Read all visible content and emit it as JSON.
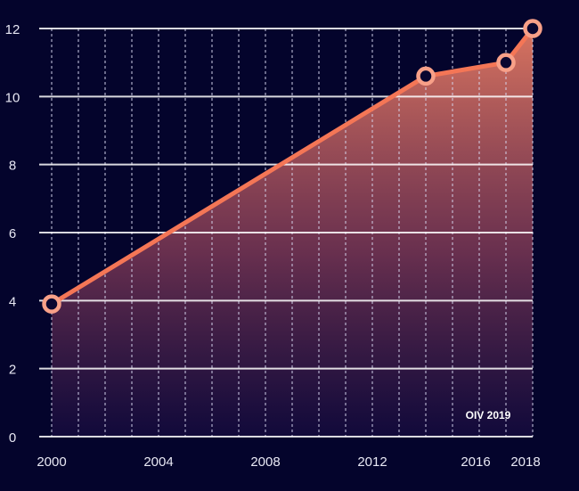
{
  "chart_data": {
    "type": "area",
    "title": "",
    "xlabel": "",
    "ylabel": "",
    "x_ticks": [
      "2000",
      "2004",
      "2008",
      "2012",
      "2016",
      "2018"
    ],
    "y_ticks": [
      "0",
      "2",
      "4",
      "6",
      "8",
      "10",
      "12"
    ],
    "xlim": [
      2000,
      2018
    ],
    "ylim": [
      0,
      12
    ],
    "grid": true,
    "series": [
      {
        "x": [
          2000,
          2014,
          2017,
          2018
        ],
        "y": [
          3.9,
          10.6,
          11.0,
          12.0
        ]
      }
    ],
    "annotation": "OIV 2019",
    "colors": {
      "background": "#04042c",
      "line": "#f47656",
      "fill_top": "#e0705a",
      "grid": "#ffffff"
    }
  }
}
